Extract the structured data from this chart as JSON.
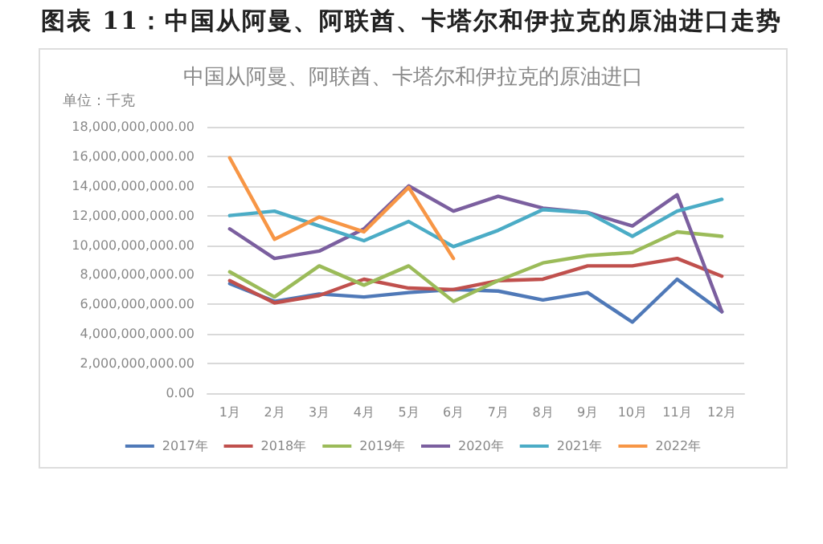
{
  "chart_data": {
    "type": "line",
    "title": "图表 11：中国从阿曼、阿联酋、卡塔尔和伊拉克的原油进口走势",
    "subtitle": "中国从阿曼、阿联酋、卡塔尔和伊拉克的原油进口",
    "ylabel": "单位：千克",
    "categories": [
      "1月",
      "2月",
      "3月",
      "4月",
      "5月",
      "6月",
      "7月",
      "8月",
      "9月",
      "10月",
      "11月",
      "12月"
    ],
    "series": [
      {
        "name": "2017年",
        "color": "#4f79b8",
        "values": [
          7400000000,
          6200000000,
          6700000000,
          6500000000,
          6800000000,
          7000000000,
          6900000000,
          6300000000,
          6800000000,
          4800000000,
          7700000000,
          5500000000
        ]
      },
      {
        "name": "2018年",
        "color": "#c0504d",
        "values": [
          7600000000,
          6100000000,
          6600000000,
          7700000000,
          7100000000,
          7000000000,
          7600000000,
          7700000000,
          8600000000,
          8600000000,
          9100000000,
          7900000000
        ]
      },
      {
        "name": "2019年",
        "color": "#9bbb59",
        "values": [
          8200000000,
          6500000000,
          8600000000,
          7300000000,
          8600000000,
          6200000000,
          7600000000,
          8800000000,
          9300000000,
          9500000000,
          10900000000,
          10600000000
        ]
      },
      {
        "name": "2020年",
        "color": "#7b5f9f",
        "values": [
          11100000000,
          9100000000,
          9600000000,
          11100000000,
          14000000000,
          12300000000,
          13300000000,
          12500000000,
          12200000000,
          11300000000,
          13400000000,
          5500000000
        ]
      },
      {
        "name": "2021年",
        "color": "#4bacc6",
        "values": [
          12000000000,
          12300000000,
          11300000000,
          10300000000,
          11600000000,
          9900000000,
          11000000000,
          12400000000,
          12200000000,
          10600000000,
          12300000000,
          13100000000
        ]
      },
      {
        "name": "2022年",
        "color": "#f79646",
        "values": [
          15900000000,
          10400000000,
          11900000000,
          10900000000,
          13900000000,
          9100000000,
          null,
          null,
          null,
          null,
          null,
          null
        ]
      }
    ],
    "ylim": [
      0,
      18000000000
    ],
    "yticks": [
      {
        "value": 0,
        "label": "0.00"
      },
      {
        "value": 2000000000,
        "label": "2,000,000,000.00"
      },
      {
        "value": 4000000000,
        "label": "4,000,000,000.00"
      },
      {
        "value": 6000000000,
        "label": "6,000,000,000.00"
      },
      {
        "value": 8000000000,
        "label": "8,000,000,000.00"
      },
      {
        "value": 10000000000,
        "label": "10,000,000,000.00"
      },
      {
        "value": 12000000000,
        "label": "12,000,000,000.00"
      },
      {
        "value": 14000000000,
        "label": "14,000,000,000.00"
      },
      {
        "value": 16000000000,
        "label": "16,000,000,000.00"
      },
      {
        "value": 18000000000,
        "label": "18,000,000,000.00"
      }
    ],
    "grid": "y",
    "legend": "bottom",
    "marker": "none",
    "line_style": "solid"
  }
}
